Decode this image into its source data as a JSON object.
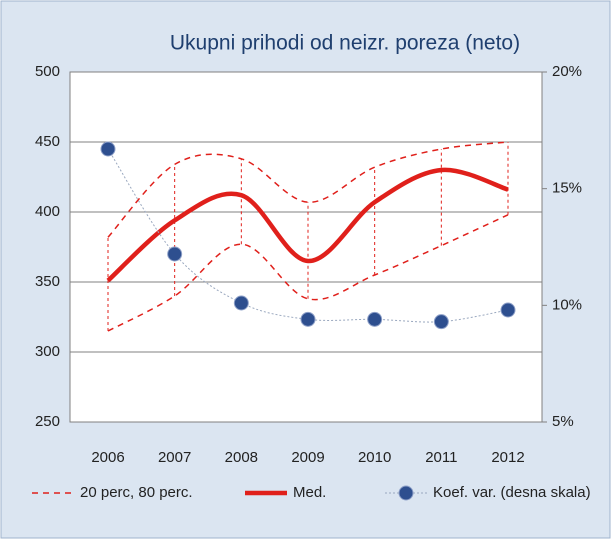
{
  "chart_data": {
    "type": "line",
    "title": "Ukupni prihodi od neizr. poreza (neto)",
    "categories": [
      "2006",
      "2007",
      "2008",
      "2009",
      "2010",
      "2011",
      "2012"
    ],
    "series": [
      {
        "name": "20 perc, 80 perc.",
        "color": "#e0201b",
        "style": "dashed",
        "low": [
          315,
          340,
          377,
          338,
          355,
          376,
          398
        ],
        "high": [
          382,
          434,
          438,
          407,
          432,
          445,
          450
        ]
      },
      {
        "name": "Med.",
        "color": "#e0201b",
        "values": [
          351,
          394,
          412,
          365,
          407,
          430,
          416
        ]
      },
      {
        "name": "Koef. var. (desna skala)",
        "color": "#2e4f8f",
        "axis": "y2",
        "values": [
          16.7,
          12.2,
          10.1,
          9.4,
          9.4,
          9.3,
          9.8
        ]
      }
    ],
    "ylim": [
      250,
      500
    ],
    "yticks": [
      250,
      300,
      350,
      400,
      450,
      500
    ],
    "y2lim": [
      5,
      20
    ],
    "y2ticks": [
      {
        "value": 5,
        "label": "5%"
      },
      {
        "value": 10,
        "label": "10%"
      },
      {
        "value": 15,
        "label": "15%"
      },
      {
        "value": 20,
        "label": "20%"
      }
    ],
    "grid": true
  }
}
